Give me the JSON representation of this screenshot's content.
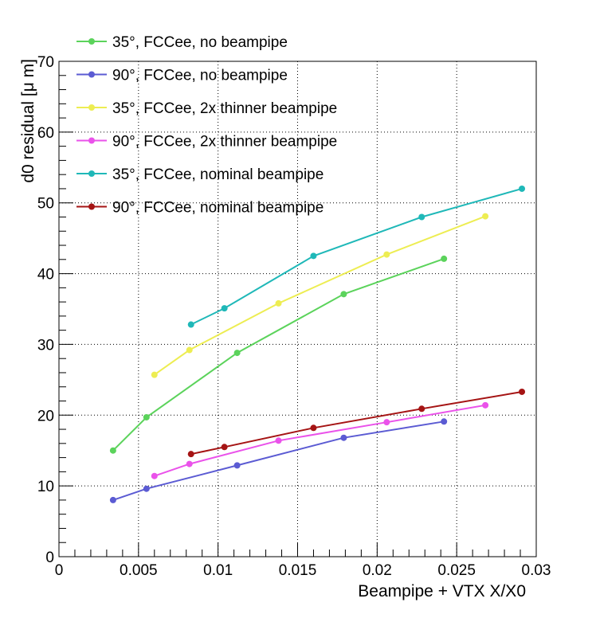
{
  "chart_data": {
    "type": "line",
    "title": "",
    "xlabel": "Beampipe + VTX X/X0",
    "ylabel": "d0 residual [μ m]",
    "xlim": [
      0,
      0.03
    ],
    "ylim": [
      0,
      70
    ],
    "x_ticks": [
      "0",
      "0.005",
      "0.01",
      "0.015",
      "0.02",
      "0.025",
      "0.03"
    ],
    "y_ticks": [
      "0",
      "10",
      "20",
      "30",
      "40",
      "50",
      "60",
      "70"
    ],
    "grid": true,
    "legend_position": "top-left",
    "series": [
      {
        "name": "35°, FCCee, no beampipe",
        "color": "#5bd35b",
        "x": [
          0.0034,
          0.0055,
          0.0112,
          0.0179,
          0.0242
        ],
        "y": [
          15.0,
          19.7,
          28.8,
          37.1,
          42.1
        ]
      },
      {
        "name": "90°, FCCee, no beampipe",
        "color": "#5b5bd3",
        "x": [
          0.0034,
          0.0055,
          0.0112,
          0.0179,
          0.0242
        ],
        "y": [
          8.0,
          9.6,
          12.9,
          16.8,
          19.1
        ]
      },
      {
        "name": "35°, FCCee, 2x thinner beampipe",
        "color": "#eded52",
        "x": [
          0.006,
          0.0082,
          0.0138,
          0.0206,
          0.0268
        ],
        "y": [
          25.7,
          29.2,
          35.8,
          42.7,
          48.1
        ]
      },
      {
        "name": "90°, FCCee, 2x thinner beampipe",
        "color": "#ea52ea",
        "x": [
          0.006,
          0.0082,
          0.0138,
          0.0206,
          0.0268
        ],
        "y": [
          11.4,
          13.1,
          16.4,
          19.0,
          21.4
        ]
      },
      {
        "name": "35°, FCCee, nominal beampipe",
        "color": "#1fb8b8",
        "x": [
          0.0083,
          0.0104,
          0.016,
          0.0228,
          0.0291
        ],
        "y": [
          32.8,
          35.1,
          42.5,
          48.0,
          52.0
        ]
      },
      {
        "name": "90°, FCCee, nominal beampipe",
        "color": "#a51414",
        "x": [
          0.0083,
          0.0104,
          0.016,
          0.0228,
          0.0291
        ],
        "y": [
          14.5,
          15.5,
          18.2,
          20.9,
          23.3
        ]
      }
    ]
  }
}
